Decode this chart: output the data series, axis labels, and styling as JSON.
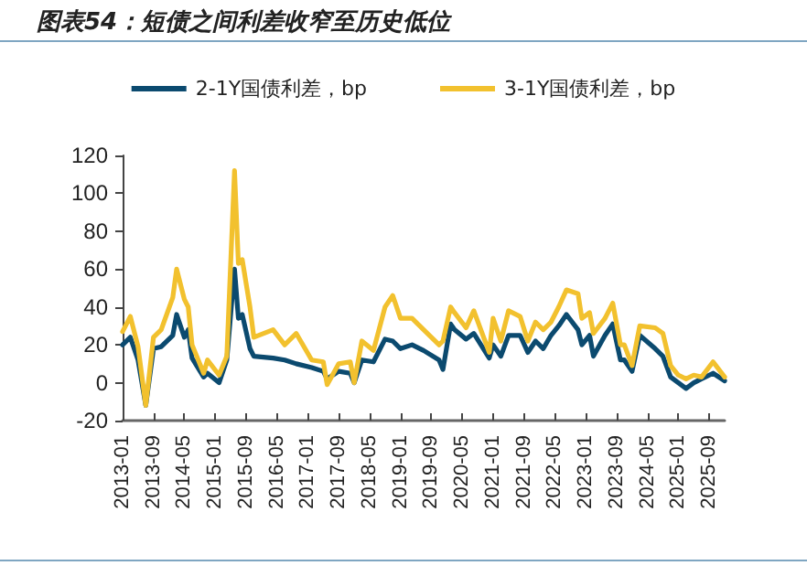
{
  "chart_data": {
    "type": "line",
    "title": "图表54：短债之间利差收窄至历史低位",
    "x": [
      "2013-01",
      "2013-03",
      "2013-05",
      "2013-07",
      "2013-09",
      "2013-11",
      "2014-02",
      "2014-03",
      "2014-05",
      "2014-06",
      "2014-07",
      "2014-10",
      "2014-11",
      "2015-02",
      "2015-04",
      "2015-06",
      "2015-07",
      "2015-08",
      "2015-10",
      "2015-11",
      "2016-04",
      "2016-07",
      "2016-10",
      "2017-02",
      "2017-05",
      "2017-06",
      "2017-09",
      "2017-12",
      "2018-01",
      "2018-03",
      "2018-06",
      "2018-09",
      "2018-11",
      "2019-01",
      "2019-04",
      "2019-07",
      "2019-11",
      "2019-12",
      "2020-02",
      "2020-03",
      "2020-06",
      "2020-08",
      "2020-12",
      "2021-01",
      "2021-03",
      "2021-05",
      "2021-08",
      "2021-10",
      "2021-12",
      "2022-02",
      "2022-04",
      "2022-06",
      "2022-08",
      "2022-11",
      "2022-12",
      "2023-02",
      "2023-03",
      "2023-06",
      "2023-08",
      "2023-10",
      "2023-11",
      "2024-01",
      "2024-03",
      "2024-07",
      "2024-09",
      "2024-11",
      "2025-01",
      "2025-03",
      "2025-05",
      "2025-07",
      "2025-10",
      "2026-01"
    ],
    "series": [
      {
        "name": "2-1Y国债利差，bp",
        "color": "#0b4a6f",
        "values": [
          20,
          24,
          12,
          -12,
          18,
          19,
          25,
          36,
          24,
          28,
          13,
          3,
          5,
          0,
          12,
          60,
          34,
          36,
          18,
          14,
          13,
          12,
          10,
          8,
          6,
          2,
          6,
          5,
          0,
          12,
          11,
          23,
          22,
          18,
          20,
          17,
          12,
          7,
          31,
          28,
          23,
          26,
          13,
          20,
          14,
          25,
          25,
          16,
          22,
          18,
          25,
          30,
          36,
          28,
          20,
          25,
          14,
          25,
          31,
          12,
          12,
          6,
          25,
          18,
          14,
          3,
          0,
          -3,
          0,
          2,
          5,
          1
        ]
      },
      {
        "name": "3-1Y国债利差，bp",
        "color": "#f2c12e",
        "values": [
          27,
          35,
          19,
          -12,
          24,
          28,
          45,
          60,
          44,
          40,
          20,
          5,
          12,
          4,
          14,
          112,
          63,
          65,
          40,
          24,
          28,
          20,
          26,
          12,
          11,
          -1,
          10,
          11,
          0,
          22,
          17,
          40,
          46,
          34,
          34,
          28,
          20,
          22,
          40,
          37,
          29,
          38,
          16,
          34,
          22,
          38,
          35,
          22,
          32,
          28,
          32,
          40,
          49,
          47,
          34,
          37,
          26,
          34,
          42,
          20,
          20,
          9,
          30,
          29,
          26,
          9,
          4,
          2,
          4,
          3,
          11,
          3
        ]
      }
    ],
    "xlim": [
      "2013-01",
      "2026-01"
    ],
    "xticks": [
      "2013-01",
      "2013-09",
      "2014-05",
      "2015-01",
      "2015-09",
      "2016-05",
      "2017-01",
      "2017-09",
      "2018-05",
      "2019-01",
      "2019-09",
      "2020-05",
      "2021-01",
      "2021-09",
      "2022-05",
      "2023-01",
      "2023-09",
      "2024-05",
      "2025-01",
      "2025-09"
    ],
    "ylim": [
      -20,
      120
    ],
    "yticks": [
      -20,
      0,
      20,
      40,
      60,
      80,
      100,
      120
    ],
    "grid": false,
    "legend": "top",
    "marker": "none",
    "line_style": "solid"
  }
}
